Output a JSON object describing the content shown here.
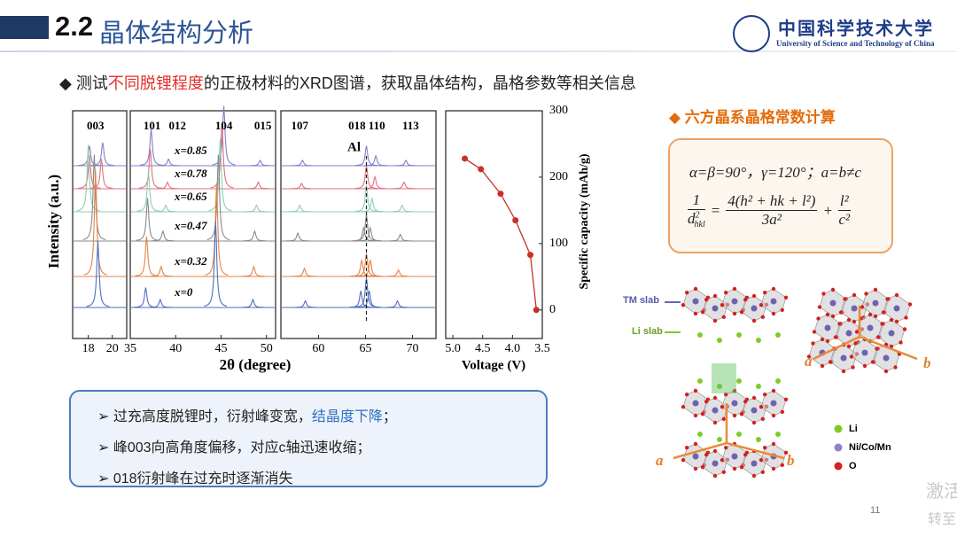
{
  "header": {
    "number": "2.2",
    "title": "晶体结构分析"
  },
  "logo": {
    "name_cn": "中国科学技术大学",
    "name_en": "University of Science and Technology of China"
  },
  "intro": {
    "before": "测试",
    "highlight": "不同脱锂程度",
    "after": "的正极材料的XRD图谱，获取晶体结构，晶格参数等相关信息"
  },
  "chart_data": [
    {
      "type": "spectrum",
      "x_label": "2θ (degree)",
      "y_label": "Intensity (a.u.)",
      "panels": [
        {
          "xlim": [
            16.7,
            21.2
          ],
          "xticks": [
            18,
            20
          ]
        },
        {
          "xlim": [
            35,
            51
          ],
          "xticks": [
            35,
            40,
            45,
            50
          ]
        },
        {
          "xlim": [
            56,
            72.5
          ],
          "xticks": [
            60,
            65,
            70
          ]
        }
      ],
      "peak_labels": [
        {
          "text": "003",
          "x": 18.6
        },
        {
          "text": "101",
          "x": 37.4
        },
        {
          "text": "012",
          "x": 40.2
        },
        {
          "text": "104",
          "x": 45.3
        },
        {
          "text": "015",
          "x": 49.6
        },
        {
          "text": "107",
          "x": 58
        },
        {
          "text": "018",
          "x": 64.1
        },
        {
          "text": "110",
          "x": 66.2
        },
        {
          "text": "113",
          "x": 69.8
        }
      ],
      "marker_line": {
        "text": "Al",
        "x": 65.1
      },
      "series": [
        {
          "name": "x=0.85",
          "color": "#7f82c8",
          "peak_x": [
            18.1,
            19.2,
            37.3,
            39.2,
            45.3,
            49.3,
            58.3,
            65.1,
            66.1,
            69.3
          ],
          "peak_h": [
            0.3,
            0.35,
            0.55,
            0.1,
            0.9,
            0.08,
            0.08,
            0.3,
            0.15,
            0.08
          ]
        },
        {
          "name": "x=0.78",
          "color": "#e0707e",
          "peak_x": [
            18.1,
            19.1,
            37.2,
            39.1,
            45.1,
            49.1,
            58.2,
            65.1,
            66.0,
            69.1
          ],
          "peak_h": [
            0.5,
            0.45,
            0.6,
            0.1,
            1.0,
            0.1,
            0.08,
            0.35,
            0.18,
            0.1
          ]
        },
        {
          "name": "x=0.65",
          "color": "#8fcfae",
          "peak_x": [
            18.0,
            37.0,
            38.9,
            44.9,
            48.9,
            58.0,
            65.1,
            65.7,
            68.9
          ],
          "peak_h": [
            1.0,
            0.6,
            0.1,
            1.1,
            0.1,
            0.1,
            0.4,
            0.2,
            0.1
          ]
        },
        {
          "name": "x=0.47",
          "color": "#8a8a8a",
          "peak_x": [
            18.5,
            36.9,
            38.6,
            44.7,
            48.7,
            57.8,
            64.8,
            65.1,
            65.5,
            68.7
          ],
          "peak_h": [
            1.3,
            0.65,
            0.15,
            1.3,
            0.15,
            0.12,
            0.2,
            0.4,
            0.2,
            0.1
          ]
        },
        {
          "name": "x=0.32",
          "color": "#e3834a",
          "peak_x": [
            18.6,
            36.8,
            38.4,
            44.5,
            48.6,
            58.5,
            64.6,
            65.1,
            65.5,
            68.5
          ],
          "peak_h": [
            1.6,
            0.6,
            0.15,
            1.4,
            0.15,
            0.12,
            0.25,
            0.35,
            0.25,
            0.1
          ]
        },
        {
          "name": "x=0",
          "color": "#4d6fbd",
          "peak_x": [
            18.8,
            36.7,
            38.3,
            44.4,
            48.5,
            58.6,
            64.5,
            65.1,
            65.4,
            68.4
          ],
          "peak_h": [
            1.0,
            0.3,
            0.12,
            1.3,
            0.12,
            0.1,
            0.25,
            0.45,
            0.25,
            0.1
          ]
        }
      ]
    },
    {
      "type": "line",
      "x_label": "Voltage (V)",
      "y_label": "Specific capacity (mAh/g)",
      "color": "#c9302a",
      "x": [
        4.8,
        4.53,
        4.2,
        3.95,
        3.7,
        3.6
      ],
      "values": [
        228,
        212,
        175,
        135,
        83,
        0
      ],
      "xlim": [
        5.12,
        3.5
      ],
      "xticks": [
        {
          "value": 5,
          "label": "5.0"
        },
        4.5,
        {
          "value": 4,
          "label": "4.0"
        },
        3.5
      ],
      "ylim": [
        -43,
        300
      ],
      "yticks": [
        0,
        100,
        200,
        300
      ]
    }
  ],
  "notes": {
    "items": [
      {
        "before": "过充高度脱锂时，衍射峰变宽，",
        "highlight": "结晶度下降",
        "after": "；"
      },
      {
        "text": "峰003向高角度偏移，对应c轴迅速收缩；"
      },
      {
        "text": "018衍射峰在过充时逐渐消失"
      }
    ]
  },
  "section": {
    "title": "六方晶系晶格常数计算"
  },
  "formula": {
    "conditions": "α=β=90°，γ=120°；a=b≠c",
    "lhs_num": "1",
    "lhs_den": "d",
    "lhs_den_sup": "2",
    "lhs_den_sub": "hkl",
    "eq": "=",
    "mid_num": "4(h² + hk + l²)",
    "mid_den": "3a²",
    "plus": "+",
    "rhs_num": "l²",
    "rhs_den": "c²"
  },
  "structure": {
    "tm_slab": "TM slab",
    "li_slab": "Li slab",
    "axis_a": "a",
    "axis_b": "b",
    "legend": [
      "Li",
      "Ni/Co/Mn",
      "O"
    ]
  },
  "page_number": "11",
  "watermark": [
    "激活",
    "转至"
  ]
}
